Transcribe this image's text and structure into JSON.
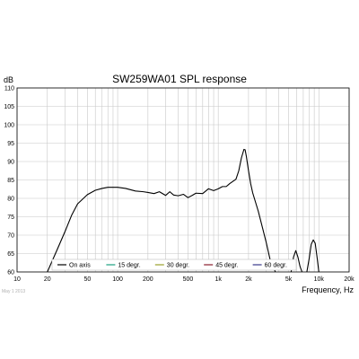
{
  "chart_data": {
    "type": "line",
    "title": "SW259WA01 SPL response",
    "xlabel": "Frequency, Hz",
    "ylabel": "dB",
    "date_stamp": "May 1 2013",
    "x_scale": "log",
    "xlim": [
      10,
      20000
    ],
    "ylim": [
      60,
      110
    ],
    "x_ticks": [
      {
        "value": 10,
        "label": "10"
      },
      {
        "value": 20,
        "label": "20"
      },
      {
        "value": 50,
        "label": "50"
      },
      {
        "value": 100,
        "label": "100"
      },
      {
        "value": 200,
        "label": "200"
      },
      {
        "value": 500,
        "label": "500"
      },
      {
        "value": 1000,
        "label": "1k"
      },
      {
        "value": 2000,
        "label": "2k"
      },
      {
        "value": 5000,
        "label": "5k"
      },
      {
        "value": 10000,
        "label": "10k"
      },
      {
        "value": 20000,
        "label": "20k"
      }
    ],
    "y_ticks": [
      60,
      65,
      70,
      75,
      80,
      85,
      90,
      95,
      100,
      105,
      110
    ],
    "grid": true,
    "legend_position": "bottom",
    "series": [
      {
        "name": "On axis",
        "color": "#000000",
        "x": [
          20,
          25,
          30,
          35,
          40,
          50,
          60,
          70,
          80,
          100,
          120,
          150,
          180,
          200,
          230,
          260,
          300,
          330,
          360,
          400,
          450,
          500,
          550,
          600,
          700,
          800,
          900,
          1000,
          1100,
          1200,
          1300,
          1500,
          1600,
          1700,
          1800,
          1850,
          1900,
          2000,
          2100,
          2200,
          2500,
          3000,
          3300,
          3700
        ],
        "y": [
          60,
          66,
          71,
          75.5,
          78.5,
          81,
          82.2,
          82.7,
          83,
          83,
          82.7,
          82,
          81.8,
          81.6,
          81.3,
          81.8,
          80.8,
          81.8,
          80.9,
          80.7,
          81.1,
          80.2,
          80.8,
          81.4,
          81.3,
          82.6,
          82.1,
          82.6,
          83.2,
          83.2,
          84,
          85.2,
          87.5,
          91,
          93.3,
          93.2,
          91.5,
          87.5,
          84,
          81.5,
          76.5,
          68,
          63,
          60
        ]
      },
      {
        "name": "On axis",
        "color": "#000000",
        "x": [
          5300,
          5600,
          5900,
          6200,
          6500,
          6800
        ],
        "y": [
          60,
          64,
          65.8,
          64,
          61.5,
          60
        ]
      },
      {
        "name": "On axis",
        "color": "#000000",
        "x": [
          7600,
          8000,
          8400,
          8800,
          9200,
          9600,
          10000
        ],
        "y": [
          60,
          63.5,
          67.5,
          68.7,
          67.8,
          64,
          60
        ]
      },
      {
        "name": "15 degr.",
        "color": "#1aa080",
        "x": [],
        "y": []
      },
      {
        "name": "30 degr.",
        "color": "#99a02a",
        "x": [],
        "y": []
      },
      {
        "name": "45 degr.",
        "color": "#8a1d2c",
        "x": [],
        "y": []
      },
      {
        "name": "60 degr.",
        "color": "#3a3a8a",
        "x": [],
        "y": []
      }
    ]
  }
}
